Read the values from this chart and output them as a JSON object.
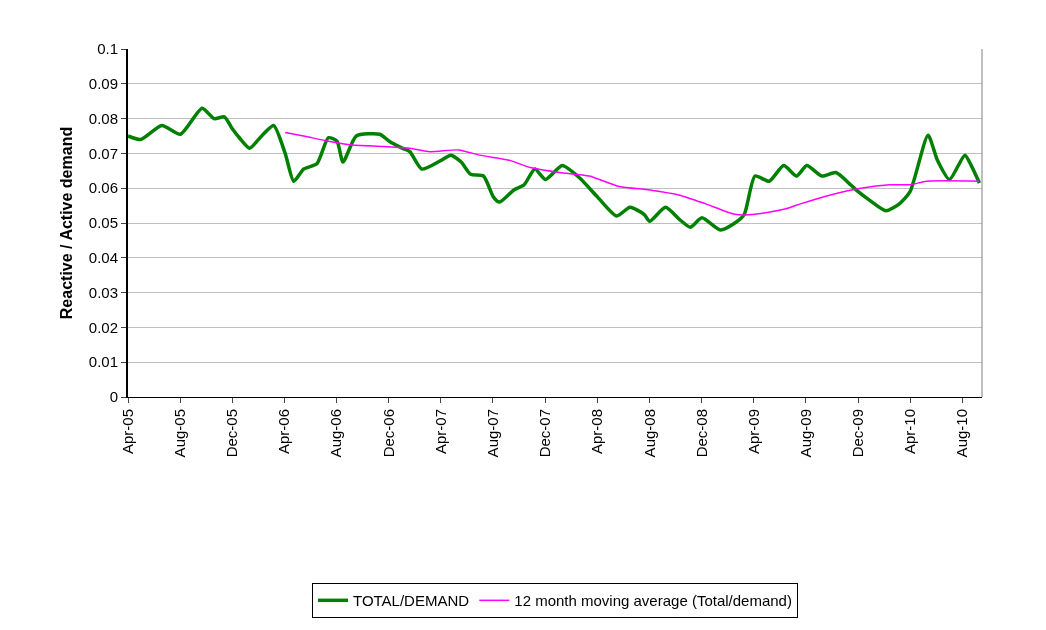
{
  "chart_data": {
    "type": "line",
    "ylabel": "Reactive / Active demand",
    "ylim": [
      0,
      0.1
    ],
    "yticks": [
      0,
      0.01,
      0.02,
      0.03,
      0.04,
      0.05,
      0.06,
      0.07,
      0.08,
      0.09,
      0.1
    ],
    "xlim": [
      "2005-04-01",
      "2010-09-16"
    ],
    "xticks": [
      {
        "value": "2005-04-01",
        "label": "Apr-05"
      },
      {
        "value": "2005-08-01",
        "label": "Aug-05"
      },
      {
        "value": "2005-12-01",
        "label": "Dec-05"
      },
      {
        "value": "2006-04-01",
        "label": "Apr-06"
      },
      {
        "value": "2006-08-01",
        "label": "Aug-06"
      },
      {
        "value": "2006-12-01",
        "label": "Dec-06"
      },
      {
        "value": "2007-04-01",
        "label": "Apr-07"
      },
      {
        "value": "2007-08-01",
        "label": "Aug-07"
      },
      {
        "value": "2007-12-01",
        "label": "Dec-07"
      },
      {
        "value": "2008-04-01",
        "label": "Apr-08"
      },
      {
        "value": "2008-08-01",
        "label": "Aug-08"
      },
      {
        "value": "2008-12-01",
        "label": "Dec-08"
      },
      {
        "value": "2009-04-01",
        "label": "Apr-09"
      },
      {
        "value": "2009-08-01",
        "label": "Aug-09"
      },
      {
        "value": "2009-12-01",
        "label": "Dec-09"
      },
      {
        "value": "2010-04-01",
        "label": "Apr-10"
      },
      {
        "value": "2010-08-01",
        "label": "Aug-10"
      }
    ],
    "grid": "y",
    "legend": "bottom",
    "marker": "none",
    "series": [
      {
        "name": "TOTAL/DEMAND",
        "color": "#008000",
        "x": [
          "2005-04-01",
          "2005-05-01",
          "2005-06-19",
          "2005-08-01",
          "2005-09-21",
          "2005-10-19",
          "2005-11-12",
          "2005-12-01",
          "2005-12-17",
          "2006-01-10",
          "2006-02-07",
          "2006-03-07",
          "2006-04-03",
          "2006-04-23",
          "2006-05-16",
          "2006-06-16",
          "2006-07-13",
          "2006-08-02",
          "2006-08-16",
          "2006-09-16",
          "2006-11-10",
          "2006-12-02",
          "2007-01-01",
          "2007-01-19",
          "2007-02-16",
          "2007-04-02",
          "2007-04-25",
          "2007-05-19",
          "2007-06-10",
          "2007-07-10",
          "2007-08-02",
          "2007-08-16",
          "2007-09-19",
          "2007-10-13",
          "2007-11-07",
          "2007-12-02",
          "2008-01-10",
          "2008-02-19",
          "2008-04-01",
          "2008-05-16",
          "2008-06-16",
          "2008-07-19",
          "2008-08-01",
          "2008-09-07",
          "2008-10-10",
          "2008-11-04",
          "2008-12-01",
          "2009-01-13",
          "2009-02-16",
          "2009-03-10",
          "2009-04-04",
          "2009-05-07",
          "2009-06-10",
          "2009-07-10",
          "2009-08-03",
          "2009-09-07",
          "2009-10-10",
          "2009-11-13",
          "2009-12-01",
          "2009-12-28",
          "2010-02-04",
          "2010-03-07",
          "2010-04-01",
          "2010-05-13",
          "2010-06-04",
          "2010-07-02",
          "2010-08-07",
          "2010-08-22",
          "2010-09-10"
        ],
        "values": [
          0.075,
          0.074,
          0.078,
          0.0755,
          0.083,
          0.08,
          0.0805,
          0.077,
          0.0745,
          0.0715,
          0.075,
          0.078,
          0.07,
          0.062,
          0.0655,
          0.067,
          0.0745,
          0.0735,
          0.0675,
          0.075,
          0.0755,
          0.0735,
          0.0715,
          0.0705,
          0.0655,
          0.068,
          0.0695,
          0.0675,
          0.064,
          0.0635,
          0.0575,
          0.056,
          0.0595,
          0.061,
          0.0655,
          0.0625,
          0.0665,
          0.063,
          0.0575,
          0.052,
          0.0545,
          0.0525,
          0.0505,
          0.0545,
          0.051,
          0.0488,
          0.0515,
          0.048,
          0.05,
          0.0525,
          0.0635,
          0.062,
          0.0665,
          0.0635,
          0.0665,
          0.0635,
          0.0645,
          0.061,
          0.059,
          0.0565,
          0.0535,
          0.0555,
          0.059,
          0.0752,
          0.068,
          0.0625,
          0.0695,
          0.0665,
          0.0615
        ]
      },
      {
        "name": "12 month moving average (Total/demand)",
        "color": "#ff00ff",
        "x": [
          "2006-04-03",
          "2006-05-16",
          "2006-07-13",
          "2006-08-31",
          "2006-11-19",
          "2007-01-19",
          "2007-03-07",
          "2007-05-13",
          "2007-07-01",
          "2007-09-10",
          "2007-10-25",
          "2008-01-04",
          "2008-03-13",
          "2008-05-22",
          "2008-08-01",
          "2008-10-10",
          "2008-12-10",
          "2009-02-16",
          "2009-04-04",
          "2009-06-13",
          "2009-07-19",
          "2009-09-25",
          "2009-12-07",
          "2010-02-13",
          "2010-04-01",
          "2010-05-10",
          "2010-09-10"
        ],
        "values": [
          0.076,
          0.075,
          0.0735,
          0.0725,
          0.072,
          0.0715,
          0.0705,
          0.071,
          0.0695,
          0.068,
          0.066,
          0.0645,
          0.0635,
          0.0605,
          0.0595,
          0.058,
          0.0555,
          0.0525,
          0.0525,
          0.054,
          0.0555,
          0.058,
          0.06,
          0.061,
          0.061,
          0.062,
          0.062
        ]
      }
    ]
  }
}
